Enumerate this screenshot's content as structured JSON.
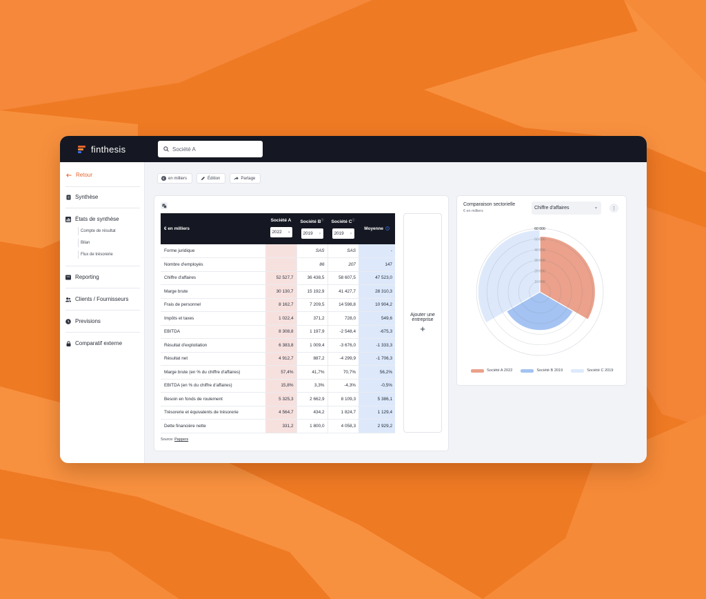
{
  "app": {
    "brand": "finthesis",
    "search": {
      "value": "Société A"
    }
  },
  "sidebar": {
    "back_label": "Retour",
    "items": [
      {
        "label": "Synthèse",
        "icon": "document-icon"
      },
      {
        "label": "États de synthèse",
        "icon": "bar-chart-icon",
        "subitems": [
          "Compte de résultat",
          "Bilan",
          "Flux de trésorerie"
        ]
      },
      {
        "label": "Reporting",
        "icon": "reporting-icon"
      },
      {
        "label": "Clients / Fournisseurs",
        "icon": "users-icon"
      },
      {
        "label": "Previsions",
        "icon": "clock-icon"
      },
      {
        "label": "Comparatif externe",
        "icon": "lock-icon"
      }
    ]
  },
  "toolbar": {
    "unit_label": "en milliers",
    "edit_label": "Édition",
    "share_label": "Partage"
  },
  "table": {
    "unit_header": "€ en milliers",
    "columns": [
      {
        "name": "Société A",
        "year": "2022"
      },
      {
        "name": "Société B",
        "year": "2019"
      },
      {
        "name": "Société C",
        "year": "2019"
      }
    ],
    "average_header": "Moyenne",
    "rows": [
      {
        "label": "Forme juridique",
        "a": "",
        "b": "SAS",
        "c": "SAS",
        "avg": "-"
      },
      {
        "label": "Nombre d'employés",
        "a": "",
        "b": "86",
        "c": "207",
        "avg": "147"
      },
      {
        "label": "Chiffre d'affaires",
        "a": "52 527,7",
        "b": "36 438,5",
        "c": "58 607,5",
        "avg": "47 523,0"
      },
      {
        "label": "Marge brute",
        "a": "30 130,7",
        "b": "15 192,9",
        "c": "41 427,7",
        "avg": "28 310,3"
      },
      {
        "label": "Frais de personnel",
        "a": "8 162,7",
        "b": "7 209,5",
        "c": "14 598,8",
        "avg": "10 904,2"
      },
      {
        "label": "Impôts et taxes",
        "a": "1 022,4",
        "b": "371,2",
        "c": "728,0",
        "avg": "549,6"
      },
      {
        "label": "EBITDA",
        "a": "8 308,8",
        "b": "1 197,9",
        "c": "-2 548,4",
        "avg": "-675,3"
      },
      {
        "label": "Résultat d'exploitation",
        "a": "6 383,8",
        "b": "1 009,4",
        "c": "-3 676,0",
        "avg": "-1 333,3"
      },
      {
        "label": "Résultat net",
        "a": "4 912,7",
        "b": "887,2",
        "c": "-4 299,9",
        "avg": "-1 706,3"
      },
      {
        "label": "Marge brute (en % du chiffre d'affaires)",
        "a": "57,4%",
        "b": "41,7%",
        "c": "70,7%",
        "avg": "56,2%"
      },
      {
        "label": "EBITDA (en % du chiffre d'affaires)",
        "a": "15,8%",
        "b": "3,3%",
        "c": "-4,3%",
        "avg": "-0,5%"
      },
      {
        "label": "Besoin en fonds de roulement",
        "a": "5 325,3",
        "b": "2 662,9",
        "c": "8 109,3",
        "avg": "5 386,1"
      },
      {
        "label": "Trésorerie et équivalents de trésorerie",
        "a": "4 564,7",
        "b": "434,2",
        "c": "1 824,7",
        "avg": "1 129,4"
      },
      {
        "label": "Dette financière nette",
        "a": "331,2",
        "b": "1 800,0",
        "c": "4 058,3",
        "avg": "2 929,2"
      }
    ],
    "source_prefix": "Source: ",
    "source_link": "Pappers",
    "add_company": "Ajouter une entreprise",
    "add_plus": "+"
  },
  "chart_panel": {
    "title": "Comparaison sectorielle",
    "subtitle": "€ en milliers",
    "metric_select": "Chiffre d'affaires"
  },
  "chart_data": {
    "type": "polar-area",
    "title": "Comparaison sectorielle",
    "metric": "Chiffre d'affaires",
    "rmax": 60000,
    "ticks": [
      10000,
      20000,
      30000,
      40000,
      50000,
      60000
    ],
    "tick_labels": [
      "10 000",
      "20 000",
      "30 000",
      "40 000",
      "50 000",
      "60 000"
    ],
    "series": [
      {
        "name": "Société A 2022",
        "value": 52527.7,
        "color": "#eba18b"
      },
      {
        "name": "Société B 2019",
        "value": 36438.5,
        "color": "#a4c3f2"
      },
      {
        "name": "Société C 2019",
        "value": 58607.5,
        "color": "#dde9fb"
      }
    ]
  },
  "colors": {
    "accent": "#e8632a",
    "dark": "#151822",
    "col_a_bg": "#f7e1df",
    "avg_bg": "#dde9fb"
  }
}
